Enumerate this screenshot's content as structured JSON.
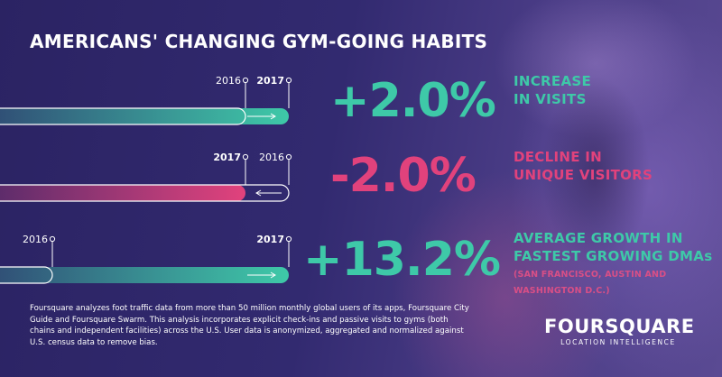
{
  "title": "AMERICANS' CHANGING GYM-GOING HABITS",
  "colors": {
    "teal": "#3ec9a8",
    "pink": "#e1427c",
    "purple_bg": "#33296b"
  },
  "chart_data": {
    "type": "bar",
    "metrics": [
      {
        "id": "visits",
        "first_label": "2016",
        "second_label": "2017",
        "first_position": 0.85,
        "second_position": 1.0,
        "pct_label": "+2.0%",
        "desc_line1": "INCREASE",
        "desc_line2": "IN VISITS",
        "subtext": "",
        "color": "#3ec9a8",
        "direction": "right"
      },
      {
        "id": "unique_visitors",
        "first_label": "2017",
        "second_label": "2016",
        "first_position": 0.85,
        "second_position": 1.0,
        "pct_label": "-2.0%",
        "desc_line1": "DECLINE IN",
        "desc_line2": "UNIQUE VISITORS",
        "subtext": "",
        "color": "#e1427c",
        "direction": "left"
      },
      {
        "id": "growing_dmas",
        "first_label": "2016",
        "second_label": "2017",
        "first_position": 0.18,
        "second_position": 1.0,
        "pct_label": "+13.2%",
        "desc_line1": "AVERAGE GROWTH IN",
        "desc_line2": "FASTEST GROWING DMAs",
        "subtext_line1": "(SAN FRANCISCO, AUSTIN AND",
        "subtext_line2": "WASHINGTON D.C.)",
        "color": "#3ec9a8",
        "direction": "right"
      }
    ]
  },
  "footnote": "Foursquare analyzes foot traffic data from more than 50 million monthly global users of its apps, Foursquare City Guide and Foursquare Swarm. This analysis incorporates explicit check-ins and passive visits to gyms (both chains and independent facilities) across the U.S. User data is anonymized, aggregated and normalized against U.S. census data to remove bias.",
  "logo": {
    "word": "FOURSQUARE",
    "tagline": "LOCATION INTELLIGENCE"
  }
}
